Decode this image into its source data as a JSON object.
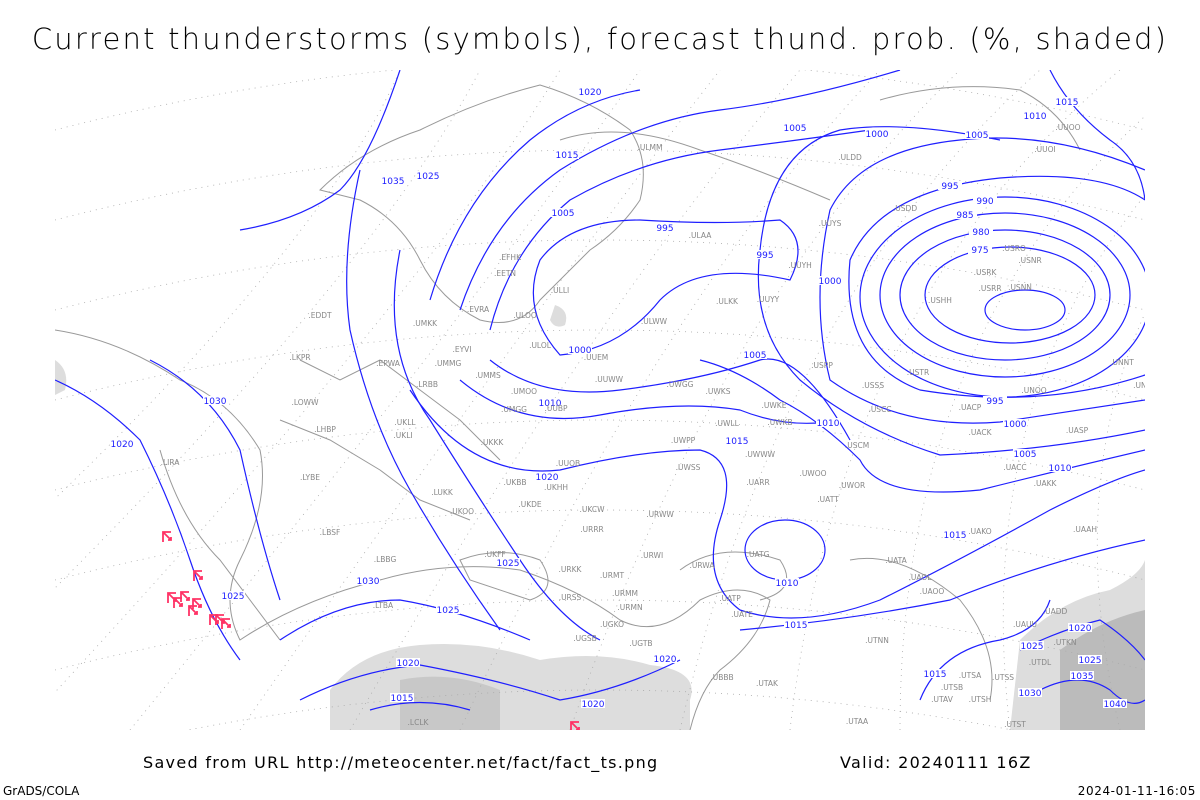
{
  "title": "Current thunderstorms (symbols), forecast thund. prob. (%, shaded)",
  "footer": {
    "saved_from": "Saved from URL http://meteocenter.net/fact/fact_ts.png",
    "valid": "Valid: 20240111 16Z",
    "software": "GrADS/COLA",
    "timestamp": "2024-01-11-16:05"
  },
  "colors": {
    "isobar": "#1f1fff",
    "coastline": "#999999",
    "thunderstorm_symbol": "#ff3366",
    "probability_shading": "#d0d0d0"
  },
  "thunderstorm_symbol_icon": "thunderstorm-symbol-icon",
  "isobar_labels": [
    "1020",
    "1015",
    "1010",
    "1005",
    "1000",
    "1005",
    "1015",
    "1035",
    "1025",
    "1005",
    "995",
    "995",
    "1000",
    "995",
    "990",
    "985",
    "980",
    "975",
    "1000",
    "1005",
    "1010",
    "1010",
    "1015",
    "1030",
    "1020",
    "1020",
    "995",
    "1000",
    "1005",
    "1010",
    "1015",
    "1010",
    "1025",
    "1030",
    "1025",
    "1025",
    "1015",
    "1020",
    "1020",
    "1015",
    "1020",
    "1015",
    "1020",
    "1025",
    "1035",
    "1040",
    "1025",
    "1030"
  ],
  "stations": [
    "ULMM",
    "ULDD",
    "UUOI",
    "UUOO",
    "USDD",
    "UUYS",
    "ULAA",
    "UUYH",
    "ULLI",
    "ULOO",
    "EFHK",
    "EETN",
    "EVRA",
    "UMKK",
    "EPWA",
    "UMMG",
    "EYVI",
    "UMMS",
    "UMOO",
    "ULOL",
    "UUEM",
    "UUWW",
    "ULWW",
    "ULKK",
    "UUYY",
    "USPP",
    "USSS",
    "USTR",
    "USCC",
    "USCM",
    "UWKE",
    "UWKB",
    "UWWW",
    "UWLL",
    "UWKS",
    "UWGG",
    "UWPP",
    "UWSS",
    "UWOO",
    "UWOR",
    "UATT",
    "UARR",
    "UATG",
    "UATA",
    "UAOL",
    "UAOO",
    "UAKO",
    "UAAH",
    "UACC",
    "UAKK",
    "UACK",
    "UACP",
    "UNOO",
    "UASP",
    "UNNT",
    "UNBB",
    "USNR",
    "USRK",
    "USRR",
    "USNN",
    "USHH",
    "USRO",
    "EDDT",
    "LKPR",
    "LOWW",
    "LHBP",
    "LIRA",
    "LYBE",
    "LBSF",
    "LBBG",
    "LTBA",
    "LRBB",
    "UKLL",
    "UKLI",
    "UKKK",
    "UKBB",
    "UKHH",
    "UKDE",
    "UKOO",
    "LUKK",
    "UKFF",
    "URKK",
    "URMT",
    "URMM",
    "URMN",
    "URSS",
    "UGSB",
    "UGKO",
    "UGTB",
    "UBBB",
    "UTAK",
    "UATE",
    "UATP",
    "URWA",
    "URWI",
    "URRR",
    "UKCW",
    "URWW",
    "UUOB",
    "UMGG",
    "UUBP",
    "UTNN",
    "UTSA",
    "UTSB",
    "UTSS",
    "UTAV",
    "UTSH",
    "UTST",
    "UTAA",
    "LCLK",
    "UAUU",
    "UADD",
    "UTDL",
    "UTKN"
  ]
}
